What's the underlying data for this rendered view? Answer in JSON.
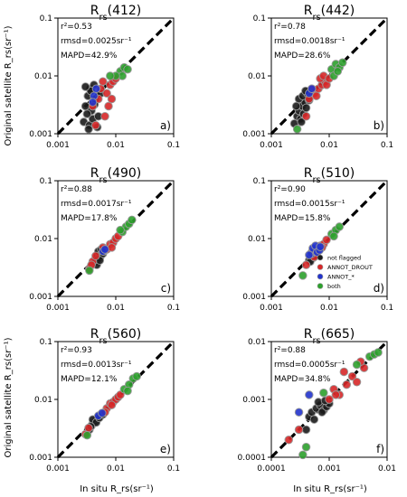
{
  "figure": {
    "ylabel": "Original satellite R_rs(sr⁻¹)",
    "xlabel": "In situ R_rs(sr⁻¹)"
  },
  "legend": {
    "entries": [
      {
        "label": "not flagged",
        "color": "#1a1a1a"
      },
      {
        "label": "ANNOT_DROUT",
        "color": "#d62728"
      },
      {
        "label": "ANNOT_*",
        "color": "#2233cc"
      },
      {
        "label": "both",
        "color": "#2ca02c"
      }
    ]
  },
  "chart_data": [
    {
      "type": "scatter",
      "title": "Rrs(412)",
      "panel_label": "a)",
      "xscale": "log",
      "yscale": "log",
      "xlim": [
        0.001,
        0.1
      ],
      "ylim": [
        0.001,
        0.1
      ],
      "xticks": [
        "0.001",
        "0.01",
        "0.1"
      ],
      "yticks": [
        "0.001",
        "0.01",
        "0.1"
      ],
      "stats": [
        "r²=0.53",
        "rmsd=0.0025sr⁻¹",
        "MAPD=42.9%"
      ],
      "series": [
        {
          "name": "not flagged",
          "color": "#1a1a1a",
          "x": [
            0.0028,
            0.003,
            0.0033,
            0.0035,
            0.0036,
            0.0038,
            0.004,
            0.0042,
            0.0045,
            0.0048,
            0.0032,
            0.0037,
            0.0043,
            0.005,
            0.0055,
            0.003,
            0.0034
          ],
          "y": [
            0.0016,
            0.003,
            0.0045,
            0.0014,
            0.006,
            0.0025,
            0.0018,
            0.007,
            0.004,
            0.0013,
            0.0022,
            0.0055,
            0.0032,
            0.002,
            0.005,
            0.0065,
            0.0012
          ]
        },
        {
          "name": "ANNOT_DROUT",
          "color": "#d62728",
          "x": [
            0.004,
            0.005,
            0.006,
            0.007,
            0.008,
            0.0065,
            0.0075,
            0.009,
            0.0055,
            0.0085,
            0.01,
            0.0045
          ],
          "y": [
            0.003,
            0.004,
            0.008,
            0.005,
            0.007,
            0.002,
            0.003,
            0.008,
            0.006,
            0.004,
            0.009,
            0.0014
          ]
        },
        {
          "name": "ANNOT_*",
          "color": "#2233cc",
          "x": [
            0.0042,
            0.0046,
            0.004
          ],
          "y": [
            0.0045,
            0.006,
            0.0035
          ]
        },
        {
          "name": "both",
          "color": "#2ca02c",
          "x": [
            0.012,
            0.014,
            0.013,
            0.016,
            0.01,
            0.008
          ],
          "y": [
            0.012,
            0.014,
            0.01,
            0.013,
            0.01,
            0.01
          ]
        }
      ]
    },
    {
      "type": "scatter",
      "title": "Rrs(442)",
      "panel_label": "b)",
      "xscale": "log",
      "yscale": "log",
      "xlim": [
        0.001,
        0.1
      ],
      "ylim": [
        0.001,
        0.1
      ],
      "xticks": [
        "0.001",
        "0.01",
        "0.1"
      ],
      "yticks": [
        "0.001",
        "0.01",
        "0.1"
      ],
      "stats": [
        "r²=0.78",
        "rmsd=0.0018sr⁻¹",
        "MAPD=28.6%"
      ],
      "series": [
        {
          "name": "not flagged",
          "color": "#1a1a1a",
          "x": [
            0.0025,
            0.0028,
            0.003,
            0.0032,
            0.0034,
            0.0036,
            0.0038,
            0.004,
            0.003,
            0.0035,
            0.0042,
            0.0045,
            0.0027,
            0.0033,
            0.0039
          ],
          "y": [
            0.0015,
            0.002,
            0.0025,
            0.0018,
            0.003,
            0.0022,
            0.0035,
            0.0028,
            0.004,
            0.0045,
            0.005,
            0.0038,
            0.003,
            0.0016,
            0.0055
          ]
        },
        {
          "name": "ANNOT_DROUT",
          "color": "#d62728",
          "x": [
            0.0045,
            0.0055,
            0.0065,
            0.0075,
            0.0085,
            0.006,
            0.007,
            0.009,
            0.005,
            0.008,
            0.01,
            0.004
          ],
          "y": [
            0.004,
            0.005,
            0.006,
            0.007,
            0.008,
            0.0045,
            0.009,
            0.007,
            0.006,
            0.01,
            0.009,
            0.002
          ]
        },
        {
          "name": "ANNOT_*",
          "color": "#2233cc",
          "x": [
            0.0045,
            0.005
          ],
          "y": [
            0.005,
            0.006
          ]
        },
        {
          "name": "both",
          "color": "#2ca02c",
          "x": [
            0.011,
            0.013,
            0.015,
            0.017,
            0.012,
            0.014,
            0.0028
          ],
          "y": [
            0.013,
            0.016,
            0.014,
            0.017,
            0.01,
            0.012,
            0.0012
          ]
        }
      ]
    },
    {
      "type": "scatter",
      "title": "Rrs(490)",
      "panel_label": "c)",
      "xscale": "log",
      "yscale": "log",
      "xlim": [
        0.001,
        0.1
      ],
      "ylim": [
        0.001,
        0.1
      ],
      "xticks": [
        "0.001",
        "0.01",
        "0.1"
      ],
      "yticks": [
        "0.001",
        "0.01",
        "0.1"
      ],
      "stats": [
        "r²=0.88",
        "rmsd=0.0017sr⁻¹",
        "MAPD=17.8%"
      ],
      "series": [
        {
          "name": "not flagged",
          "color": "#1a1a1a",
          "x": [
            0.0045,
            0.0048,
            0.005,
            0.0052,
            0.0055,
            0.0058,
            0.006,
            0.005,
            0.0056,
            0.0062,
            0.0047,
            0.0053
          ],
          "y": [
            0.004,
            0.005,
            0.0045,
            0.0055,
            0.005,
            0.006,
            0.0055,
            0.006,
            0.0065,
            0.006,
            0.0035,
            0.0042
          ]
        },
        {
          "name": "ANNOT_DROUT",
          "color": "#d62728",
          "x": [
            0.0035,
            0.004,
            0.0045,
            0.007,
            0.008,
            0.009,
            0.01,
            0.011,
            0.0085,
            0.006,
            0.0038
          ],
          "y": [
            0.003,
            0.004,
            0.005,
            0.0065,
            0.008,
            0.0085,
            0.01,
            0.011,
            0.007,
            0.007,
            0.0035
          ]
        },
        {
          "name": "ANNOT_*",
          "color": "#2233cc",
          "x": [
            0.006,
            0.0065
          ],
          "y": [
            0.006,
            0.0065
          ]
        },
        {
          "name": "both",
          "color": "#2ca02c",
          "x": [
            0.013,
            0.015,
            0.017,
            0.019,
            0.012,
            0.0035
          ],
          "y": [
            0.013,
            0.016,
            0.018,
            0.021,
            0.014,
            0.0028
          ]
        }
      ]
    },
    {
      "type": "scatter",
      "title": "Rrs(510)",
      "panel_label": "d)",
      "xscale": "log",
      "yscale": "log",
      "xlim": [
        0.001,
        0.1
      ],
      "ylim": [
        0.001,
        0.1
      ],
      "xticks": [
        "0.001",
        "0.01",
        "0.1"
      ],
      "yticks": [
        "0.001",
        "0.01",
        "0.1"
      ],
      "stats": [
        "r²=0.90",
        "rmsd=0.0015sr⁻¹",
        "MAPD=15.8%"
      ],
      "series": [
        {
          "name": "not flagged",
          "color": "#1a1a1a",
          "x": [
            0.0045,
            0.0048,
            0.005,
            0.0052,
            0.0055,
            0.0058,
            0.005,
            0.0054,
            0.0047
          ],
          "y": [
            0.0042,
            0.0048,
            0.0052,
            0.0046,
            0.0055,
            0.005,
            0.0058,
            0.006,
            0.004
          ]
        },
        {
          "name": "ANNOT_DROUT",
          "color": "#d62728",
          "x": [
            0.004,
            0.006,
            0.007,
            0.008,
            0.009,
            0.0055,
            0.0075
          ],
          "y": [
            0.0035,
            0.0065,
            0.0075,
            0.008,
            0.0095,
            0.0048,
            0.007
          ]
        },
        {
          "name": "ANNOT_*",
          "color": "#2233cc",
          "x": [
            0.005,
            0.0055,
            0.006,
            0.0065,
            0.0052,
            0.0058,
            0.0062,
            0.0068,
            0.0045,
            0.007
          ],
          "y": [
            0.0055,
            0.006,
            0.0065,
            0.007,
            0.0068,
            0.0075,
            0.0058,
            0.0063,
            0.0052,
            0.0072
          ]
        },
        {
          "name": "both",
          "color": "#2ca02c",
          "x": [
            0.011,
            0.013,
            0.015,
            0.0035,
            0.012
          ],
          "y": [
            0.012,
            0.014,
            0.016,
            0.0023,
            0.011
          ]
        }
      ]
    },
    {
      "type": "scatter",
      "title": "Rrs(560)",
      "panel_label": "e)",
      "xscale": "log",
      "yscale": "log",
      "xlim": [
        0.001,
        0.1
      ],
      "ylim": [
        0.001,
        0.1
      ],
      "xticks": [
        "0.001",
        "0.01",
        "0.1"
      ],
      "yticks": [
        "0.001",
        "0.01",
        "0.1"
      ],
      "stats": [
        "r²=0.93",
        "rmsd=0.0013sr⁻¹",
        "MAPD=12.1%"
      ],
      "series": [
        {
          "name": "not flagged",
          "color": "#1a1a1a",
          "x": [
            0.0035,
            0.0038,
            0.004,
            0.0042,
            0.0045,
            0.0048,
            0.005,
            0.0055,
            0.004,
            0.0046,
            0.0052,
            0.0037,
            0.006
          ],
          "y": [
            0.003,
            0.0035,
            0.0038,
            0.004,
            0.0043,
            0.0046,
            0.005,
            0.0052,
            0.0045,
            0.004,
            0.0048,
            0.0034,
            0.0055
          ]
        },
        {
          "name": "ANNOT_DROUT",
          "color": "#d62728",
          "x": [
            0.003,
            0.0034,
            0.007,
            0.008,
            0.009,
            0.01,
            0.011,
            0.0085,
            0.0065,
            0.012
          ],
          "y": [
            0.0025,
            0.0032,
            0.007,
            0.0085,
            0.009,
            0.01,
            0.011,
            0.008,
            0.006,
            0.012
          ]
        },
        {
          "name": "ANNOT_*",
          "color": "#2233cc",
          "x": [
            0.005,
            0.0058
          ],
          "y": [
            0.0052,
            0.0058
          ]
        },
        {
          "name": "both",
          "color": "#2ca02c",
          "x": [
            0.014,
            0.017,
            0.02,
            0.023,
            0.016,
            0.0032
          ],
          "y": [
            0.015,
            0.018,
            0.023,
            0.025,
            0.014,
            0.0024
          ]
        }
      ]
    },
    {
      "type": "scatter",
      "title": "Rrs(665)",
      "panel_label": "f)",
      "xscale": "log",
      "yscale": "log",
      "xlim": [
        0.0001,
        0.01
      ],
      "ylim": [
        0.0001,
        0.01
      ],
      "xticks": [
        "0.0001",
        "0.001",
        "0.01"
      ],
      "yticks": [
        "0.0001",
        "0.001",
        "0.01"
      ],
      "stats": [
        "r²=0.88",
        "rmsd=0.0005sr⁻¹",
        "MAPD=34.8%"
      ],
      "series": [
        {
          "name": "not flagged",
          "color": "#1a1a1a",
          "x": [
            0.00045,
            0.0005,
            0.0006,
            0.0007,
            0.0008,
            0.00055,
            0.00065,
            0.00075,
            0.0009,
            0.001,
            0.00085,
            0.0004
          ],
          "y": [
            0.0005,
            0.0006,
            0.0007,
            0.0008,
            0.00065,
            0.00045,
            0.0009,
            0.0006,
            0.00075,
            0.00085,
            0.00095,
            0.0003
          ]
        },
        {
          "name": "ANNOT_DROUT",
          "color": "#d62728",
          "x": [
            0.0002,
            0.0003,
            0.001,
            0.0012,
            0.0015,
            0.002,
            0.0025,
            0.003,
            0.0018,
            0.0013,
            0.004,
            0.0035
          ],
          "y": [
            0.0002,
            0.0003,
            0.001,
            0.0015,
            0.0012,
            0.0018,
            0.0025,
            0.002,
            0.003,
            0.0012,
            0.0035,
            0.0045
          ]
        },
        {
          "name": "ANNOT_*",
          "color": "#2233cc",
          "x": [
            0.00045,
            0.0003
          ],
          "y": [
            0.0012,
            0.0006
          ]
        },
        {
          "name": "both",
          "color": "#2ca02c",
          "x": [
            0.0004,
            0.005,
            0.006,
            0.007,
            0.003,
            0.00035,
            0.0008
          ],
          "y": [
            0.00015,
            0.0055,
            0.006,
            0.0065,
            0.004,
            0.00011,
            0.0013
          ]
        }
      ]
    }
  ]
}
